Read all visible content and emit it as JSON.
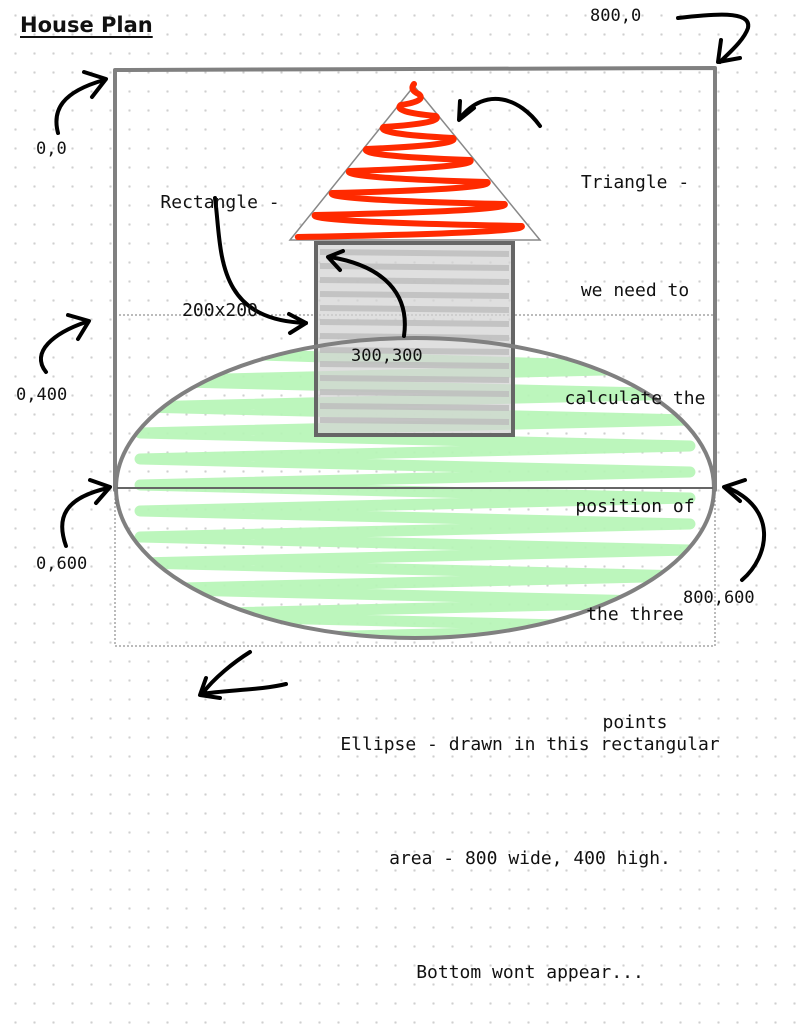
{
  "title": "House Plan",
  "coordinates": {
    "top_left": "0,0",
    "top_right": "800,0",
    "mid_left": "0,400",
    "bottom_left": "0,600",
    "bottom_right": "800,600",
    "rect_corner": "300,300"
  },
  "annotations": {
    "rectangle": [
      "Rectangle -",
      "200x200"
    ],
    "triangle": [
      "Triangle -",
      "we need to",
      "calculate the",
      "position of",
      "the three",
      "points"
    ],
    "ellipse": [
      "Ellipse - drawn in this rectangular",
      "area - 800 wide, 400 high.",
      "Bottom wont appear..."
    ]
  },
  "colors": {
    "frame": "#808080",
    "roof_scribble": "#ff2a00",
    "ellipse_fill": "#b5f5b5",
    "rect_fill": "#d2d2d2",
    "ink": "#111111"
  }
}
